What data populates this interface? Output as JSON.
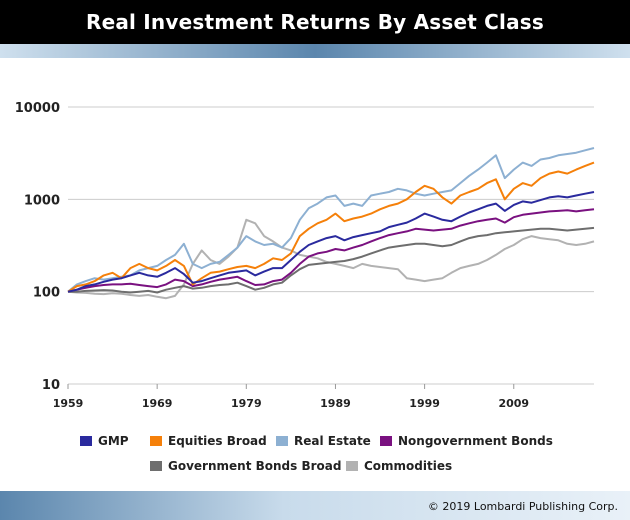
{
  "header": {
    "title": "Real Investment Returns By Asset Class"
  },
  "footer": {
    "copyright": "© 2019 Lombardi Publishing Corp."
  },
  "chart_data": {
    "type": "line",
    "title": "Real Investment Returns By Asset Class",
    "xlabel": "",
    "ylabel": "",
    "y_scale": "log",
    "ylim": [
      10,
      10000
    ],
    "xlim": [
      1959,
      2018
    ],
    "grid": "horizontal",
    "legend_position": "bottom",
    "y_ticks": [
      "10",
      "100",
      "1000",
      "10000"
    ],
    "x_ticks": [
      "1959",
      "1969",
      "1979",
      "1989",
      "1999",
      "2009"
    ],
    "x": [
      1959,
      1960,
      1961,
      1962,
      1963,
      1964,
      1965,
      1966,
      1967,
      1968,
      1969,
      1970,
      1971,
      1972,
      1973,
      1974,
      1975,
      1976,
      1977,
      1978,
      1979,
      1980,
      1981,
      1982,
      1983,
      1984,
      1985,
      1986,
      1987,
      1988,
      1989,
      1990,
      1991,
      1992,
      1993,
      1994,
      1995,
      1996,
      1997,
      1998,
      1999,
      2000,
      2001,
      2002,
      2003,
      2004,
      2005,
      2006,
      2007,
      2008,
      2009,
      2010,
      2011,
      2012,
      2013,
      2014,
      2015,
      2016,
      2017,
      2018
    ],
    "series": [
      {
        "name": "GMP",
        "color": "#2a2a9e",
        "values": [
          100,
          105,
          115,
          120,
          128,
          135,
          140,
          150,
          160,
          150,
          145,
          160,
          180,
          155,
          125,
          130,
          140,
          150,
          160,
          165,
          170,
          150,
          165,
          180,
          180,
          220,
          270,
          320,
          350,
          380,
          400,
          360,
          390,
          410,
          430,
          450,
          500,
          530,
          560,
          620,
          700,
          650,
          600,
          580,
          650,
          720,
          780,
          850,
          900,
          750,
          870,
          950,
          920,
          980,
          1050,
          1080,
          1050,
          1100,
          1150,
          1200
        ]
      },
      {
        "name": "Equities Broad",
        "color": "#f5800a",
        "values": [
          100,
          115,
          120,
          130,
          150,
          160,
          140,
          180,
          200,
          180,
          170,
          190,
          220,
          190,
          120,
          140,
          160,
          165,
          175,
          185,
          190,
          180,
          200,
          230,
          220,
          260,
          400,
          480,
          550,
          600,
          700,
          580,
          620,
          650,
          700,
          780,
          850,
          900,
          1000,
          1200,
          1400,
          1300,
          1050,
          900,
          1100,
          1200,
          1300,
          1500,
          1650,
          1000,
          1300,
          1500,
          1400,
          1700,
          1900,
          2000,
          1900,
          2100,
          2300,
          2500
        ]
      },
      {
        "name": "Real Estate",
        "color": "#8db0d2",
        "values": [
          100,
          120,
          130,
          140,
          135,
          140,
          145,
          150,
          170,
          180,
          190,
          220,
          250,
          330,
          200,
          180,
          200,
          210,
          250,
          300,
          400,
          350,
          320,
          330,
          300,
          380,
          600,
          800,
          900,
          1050,
          1100,
          850,
          900,
          850,
          1100,
          1150,
          1200,
          1300,
          1250,
          1150,
          1100,
          1150,
          1200,
          1250,
          1500,
          1800,
          2100,
          2500,
          3000,
          1700,
          2100,
          2500,
          2300,
          2700,
          2800,
          3000,
          3100,
          3200,
          3400,
          3600
        ]
      },
      {
        "name": "Nongovernment Bonds",
        "color": "#7a1180",
        "values": [
          100,
          105,
          110,
          115,
          118,
          120,
          120,
          122,
          118,
          115,
          112,
          120,
          135,
          130,
          115,
          120,
          128,
          135,
          140,
          145,
          130,
          118,
          120,
          130,
          135,
          160,
          200,
          240,
          260,
          270,
          290,
          280,
          300,
          320,
          350,
          380,
          410,
          430,
          450,
          480,
          470,
          460,
          470,
          480,
          520,
          550,
          580,
          600,
          620,
          560,
          640,
          680,
          700,
          720,
          740,
          750,
          760,
          740,
          760,
          780
        ]
      },
      {
        "name": "Government Bonds Broad",
        "color": "#6e6e6e",
        "values": [
          100,
          100,
          102,
          103,
          104,
          103,
          100,
          98,
          100,
          102,
          98,
          105,
          110,
          115,
          108,
          110,
          115,
          118,
          120,
          125,
          115,
          105,
          110,
          120,
          125,
          150,
          175,
          195,
          200,
          205,
          210,
          215,
          225,
          240,
          260,
          280,
          300,
          310,
          320,
          330,
          330,
          320,
          310,
          320,
          350,
          380,
          400,
          410,
          430,
          440,
          450,
          460,
          470,
          480,
          480,
          470,
          460,
          470,
          480,
          490
        ]
      },
      {
        "name": "Commodities",
        "color": "#b2b2b2",
        "values": [
          100,
          98,
          97,
          95,
          94,
          96,
          95,
          92,
          90,
          92,
          88,
          85,
          90,
          120,
          200,
          280,
          220,
          200,
          240,
          300,
          600,
          550,
          400,
          350,
          300,
          280,
          250,
          240,
          230,
          210,
          200,
          190,
          180,
          200,
          190,
          185,
          180,
          175,
          140,
          135,
          130,
          135,
          140,
          160,
          180,
          190,
          200,
          220,
          250,
          290,
          320,
          370,
          400,
          380,
          370,
          360,
          330,
          320,
          330,
          350
        ]
      }
    ]
  }
}
